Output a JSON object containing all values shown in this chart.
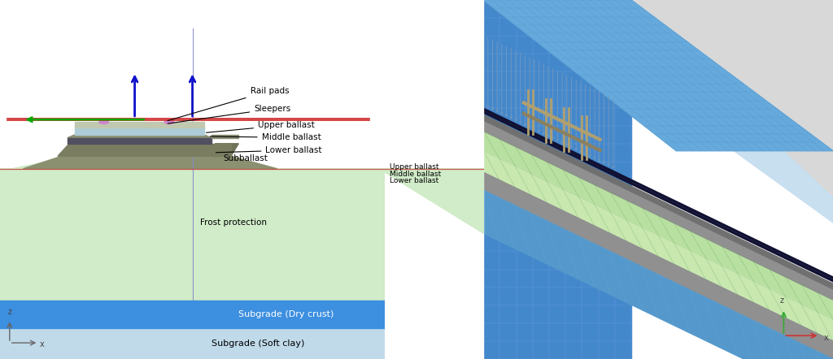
{
  "fig_width": 10.24,
  "fig_height": 4.42,
  "bg_color": "#ffffff",
  "left": {
    "frost_color": "#d0ecc8",
    "subgrade_dry_color": "#3d8fe0",
    "subgrade_soft_color": "#c0daea",
    "subballast_color": "#8a9070",
    "lower_ballast_color": "#7a7d60",
    "middle_ballast_color": "#8a8d72",
    "upper_ballast_color": "#aab0c0",
    "sleeper_color": "#c0c8b0",
    "upper_ballast_light": "#aeccd8",
    "rail_pad_color": "#cc88cc",
    "arrow_color": "#1010cc",
    "green_arrow_color": "#00aa00",
    "rail_color": "#cc2222",
    "axis_line_color": "#8888aa",
    "label_fontsize": 7.5,
    "subgrade_soft_label": "Subgrade (Soft clay)",
    "subgrade_dry_label": "Subgrade (Dry crust)",
    "frost_label": "Frost protection",
    "subballast_label": "Subballast",
    "upper_ballast_label": "Upper ballast",
    "middle_ballast_label": "Middle ballast",
    "lower_ballast_label": "Lower ballast",
    "sleepers_label": "Sleepers",
    "rail_pads_label": "Rail pads"
  },
  "right": {
    "white_color": "#f0f0f0",
    "blue_face_color": "#4488cc",
    "blue_top_color": "#66aadd",
    "green_top_color": "#99cc88",
    "green_face_color": "#c8e8a8",
    "gray_band_color": "#909090",
    "gray_dark_color": "#888880",
    "rail_color": "#111133",
    "sleeper_color": "#b0a070",
    "load_color": "#7799bb",
    "mesh_line_blue": "#5599cc",
    "mesh_line_green": "#70aa70",
    "mesh_line_gray": "#aaaaaa"
  }
}
